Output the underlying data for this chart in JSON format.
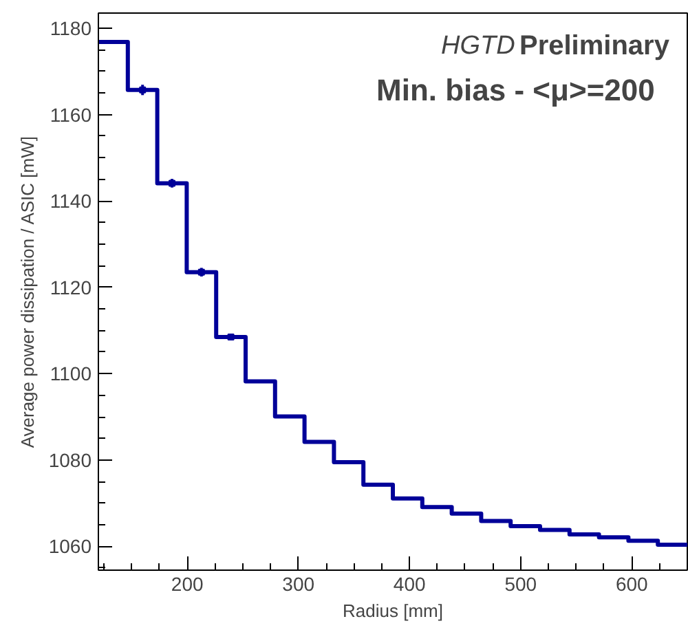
{
  "chart_data": {
    "type": "histogram",
    "xlabel": "Radius [mm]",
    "ylabel": "Average power dissipation / ASIC [mW]",
    "annotations": [
      "HGTD",
      "Preliminary",
      "Min. bias - <μ>=200"
    ],
    "bins": [
      120,
      146.5,
      173,
      199.5,
      226,
      252.5,
      279,
      305.5,
      332,
      358.5,
      385,
      411.5,
      438,
      464.5,
      491,
      517.5,
      544,
      570.5,
      597,
      623.5,
      650
    ],
    "values": [
      1176.8,
      1165.7,
      1144.1,
      1123.5,
      1108.5,
      1098.2,
      1090.1,
      1084.2,
      1079.5,
      1074.3,
      1071.1,
      1069.1,
      1067.6,
      1065.9,
      1064.7,
      1063.8,
      1062.8,
      1062.1,
      1061.3,
      1060.4
    ],
    "color": "#000099",
    "series": [
      {
        "type": "scatter",
        "x": [
          159.75,
          186.25,
          212.75,
          239.25
        ],
        "values": [
          1165.7,
          1144.1,
          1123.5,
          1108.5
        ],
        "errors": [
          1.2,
          1.0,
          1.0,
          0.5
        ],
        "marker": "square",
        "color": "#000099"
      }
    ],
    "xlim": [
      120,
      650
    ],
    "ylim": [
      1054.5,
      1183.5
    ],
    "xticks": [
      200,
      300,
      400,
      500,
      600
    ],
    "yticks": [
      1060,
      1080,
      1100,
      1120,
      1140,
      1160,
      1180
    ]
  }
}
